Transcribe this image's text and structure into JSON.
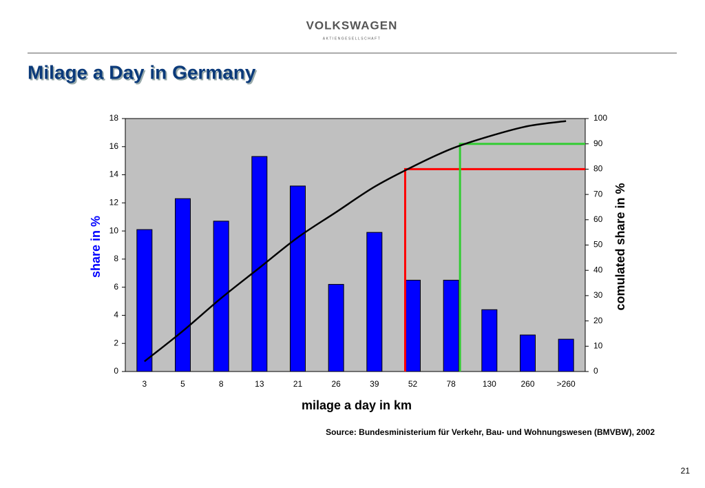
{
  "header": {
    "brand": "VOLKSWAGEN",
    "subbrand": "AKTIENGESELLSCHAFT"
  },
  "chart_data": {
    "type": "bar",
    "title": "Milage a Day in Germany",
    "x_label": "milage a day in km",
    "y_label": "share in %",
    "y2_label": "comulated share in %",
    "categories": [
      "3",
      "5",
      "8",
      "13",
      "21",
      "26",
      "39",
      "52",
      "78",
      "130",
      "260",
      ">260"
    ],
    "series": [
      {
        "name": "share",
        "color": "#0000ff",
        "values": [
          10.1,
          12.3,
          10.7,
          15.3,
          13.2,
          6.2,
          9.9,
          6.5,
          6.5,
          4.4,
          2.6,
          2.3
        ]
      },
      {
        "name": "cumulated share",
        "color": "#000000",
        "axis": "y2",
        "type": "line",
        "values": [
          4,
          16,
          29,
          41,
          53,
          63,
          73,
          81,
          88,
          93,
          97,
          99
        ]
      }
    ],
    "ylim": [
      0,
      18
    ],
    "yticks": [
      0,
      2,
      4,
      6,
      8,
      10,
      12,
      14,
      16,
      18
    ],
    "y2lim": [
      0,
      100
    ],
    "y2ticks": [
      0,
      10,
      20,
      30,
      40,
      50,
      60,
      70,
      80,
      90,
      100
    ],
    "reference_lines": [
      {
        "value": 80,
        "color": "#ff0000"
      },
      {
        "value": 90,
        "color": "#33cc33"
      }
    ],
    "plot_background": "#c0c0c0",
    "source": "Source: Bundesministerium für Verkehr, Bau- und Wohnungswesen (BMVBW), 2002"
  },
  "page_number": "21"
}
